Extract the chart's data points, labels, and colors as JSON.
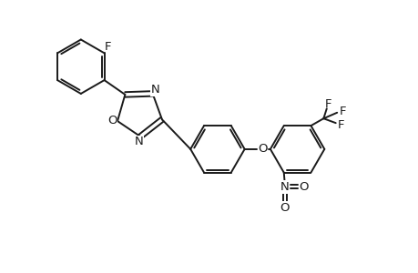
{
  "background": "#ffffff",
  "line_color": "#1a1a1a",
  "line_width": 1.4,
  "font_size": 9.5,
  "figsize": [
    4.6,
    3.0
  ],
  "dpi": 100,
  "xlim": [
    0,
    9.2
  ],
  "ylim": [
    0,
    6.0
  ]
}
